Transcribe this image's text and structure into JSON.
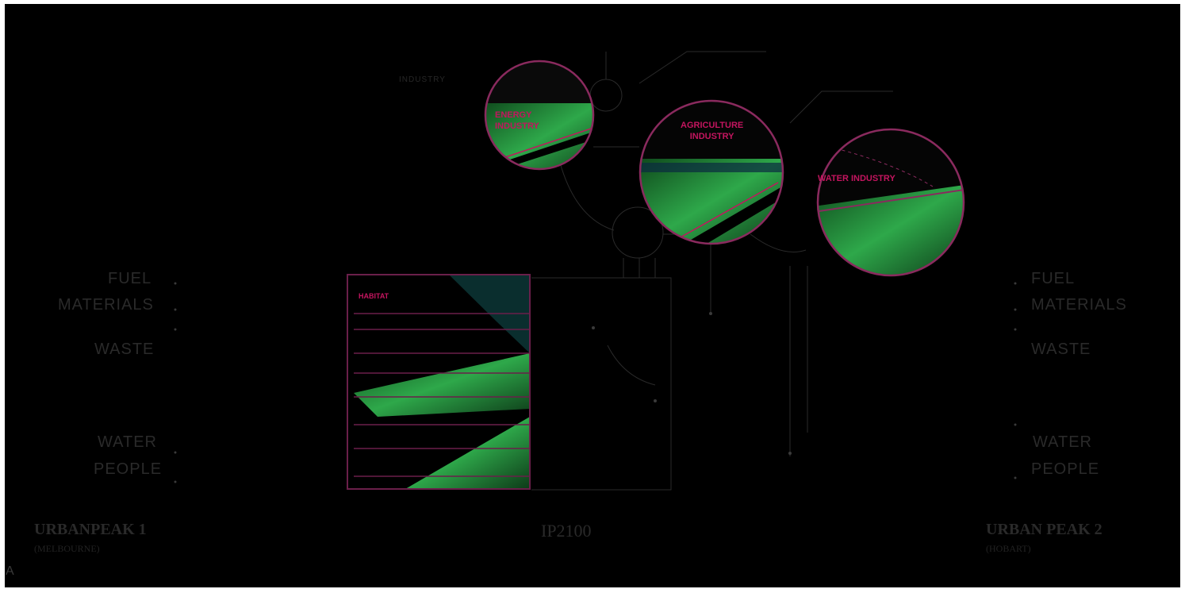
{
  "industry_label": "INDUSTRY",
  "circles": {
    "energy": "ENERGY\nINDUSTRY",
    "agriculture": "AGRICULTURE\nINDUSTRY",
    "water": "WATER INDUSTRY"
  },
  "habitat_label": "HABITAT",
  "left_flows": [
    "FUEL",
    "MATERIALS",
    "WASTE",
    "WATER",
    "PEOPLE"
  ],
  "right_flows": [
    "FUEL",
    "MATERIALS",
    "WASTE",
    "WATER",
    "PEOPLE"
  ],
  "peak1": {
    "title": "URBANPEAK 1",
    "subtitle": "(MELBOURNE)"
  },
  "center": {
    "title": "IP2100"
  },
  "peak2": {
    "title": "URBAN PEAK 2",
    "subtitle": "(HOBART)"
  },
  "corner_letter": "A",
  "colors": {
    "background": "#000000",
    "accent": "#c4155f",
    "frame": "#6a1f4a",
    "green": "#2ea84a"
  }
}
